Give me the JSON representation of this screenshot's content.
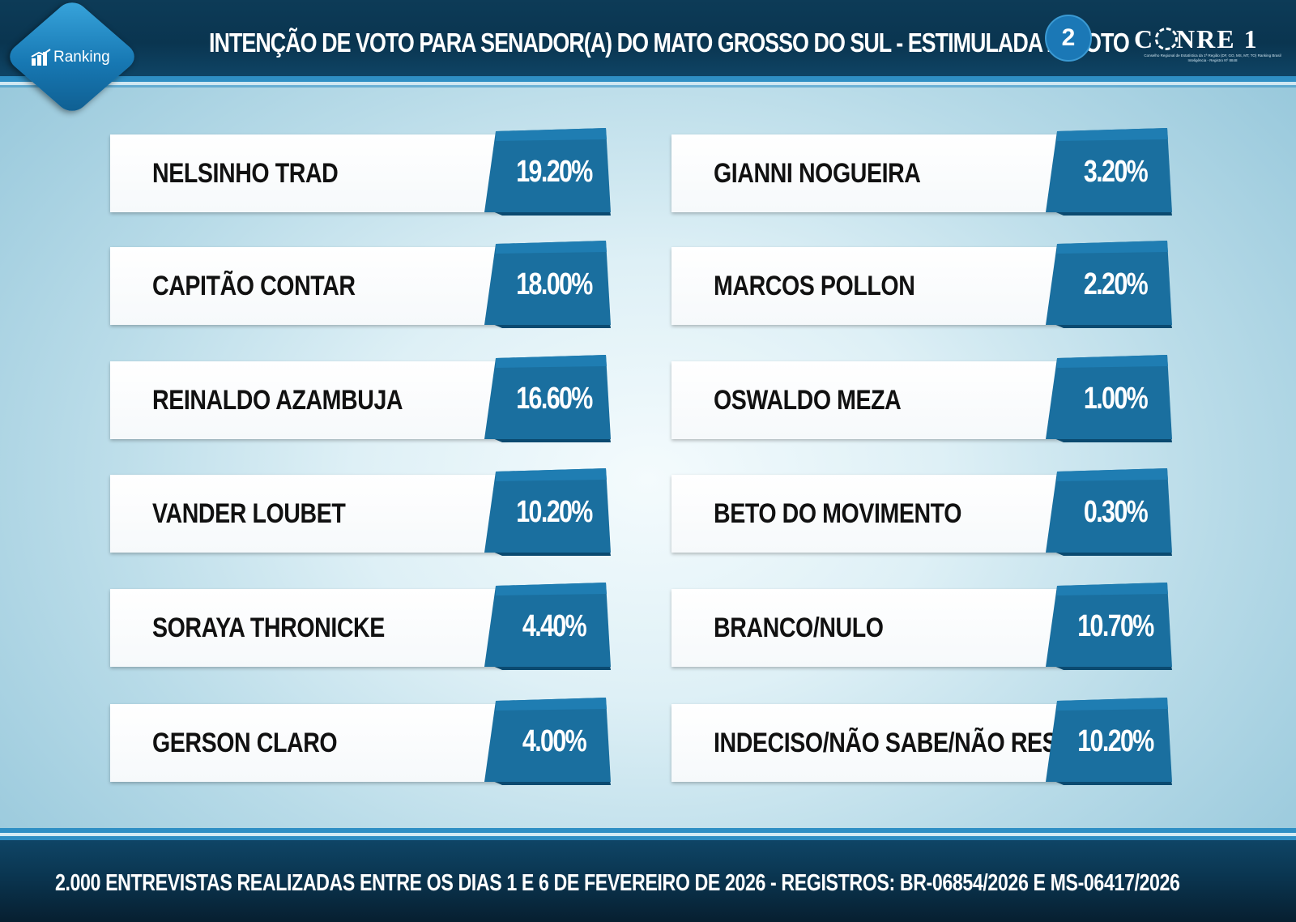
{
  "header": {
    "logo_label": "Ranking",
    "title": "INTENÇÃO DE VOTO PARA SENADOR(A) DO MATO GROSSO DO SUL - ESTIMULADA 2º VOTO",
    "page_number": "2",
    "brand_name": "CONRE 1",
    "brand_subtitle": "Conselho Regional de Estatística da 1ª Região (DF, GO, MS, MT, TO) Ranking Brasil Inteligência - Registro Nº 8848"
  },
  "colors": {
    "accent": "#1a6f9f",
    "header_bg": "#0d3b57",
    "stripe": "#2f8fc4"
  },
  "chart_data": {
    "type": "table",
    "title": "INTENÇÃO DE VOTO PARA SENADOR(A) DO MATO GROSSO DO SUL - ESTIMULADA 2º VOTO",
    "columns": [
      [
        {
          "name": "NELSINHO TRAD",
          "value": 19.2,
          "label": "19.20%"
        },
        {
          "name": "CAPITÃO CONTAR",
          "value": 18.0,
          "label": "18.00%"
        },
        {
          "name": "REINALDO AZAMBUJA",
          "value": 16.6,
          "label": "16.60%"
        },
        {
          "name": "VANDER LOUBET",
          "value": 10.2,
          "label": "10.20%"
        },
        {
          "name": "SORAYA THRONICKE",
          "value": 4.4,
          "label": "4.40%"
        },
        {
          "name": "GERSON CLARO",
          "value": 4.0,
          "label": "4.00%"
        }
      ],
      [
        {
          "name": "GIANNI NOGUEIRA",
          "value": 3.2,
          "label": "3.20%"
        },
        {
          "name": "MARCOS POLLON",
          "value": 2.2,
          "label": "2.20%"
        },
        {
          "name": "OSWALDO MEZA",
          "value": 1.0,
          "label": "1.00%"
        },
        {
          "name": "BETO DO MOVIMENTO",
          "value": 0.3,
          "label": "0.30%"
        },
        {
          "name": "BRANCO/NULO",
          "value": 10.7,
          "label": "10.70%"
        },
        {
          "name": "INDECISO/NÃO SABE/NÃO RESP.",
          "value": 10.2,
          "label": "10.20%"
        }
      ]
    ]
  },
  "footer": {
    "text": "2.000 ENTREVISTAS REALIZADAS ENTRE OS DIAS 1 E 6 DE FEVEREIRO DE 2026 - REGISTROS: BR-06854/2026 E MS-06417/2026"
  }
}
